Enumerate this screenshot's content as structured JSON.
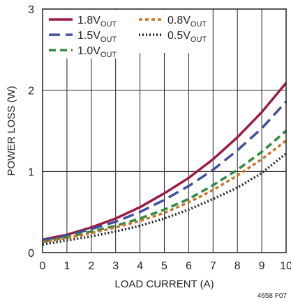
{
  "chart_data": {
    "type": "line",
    "title": "",
    "xlabel": "LOAD CURRENT (A)",
    "ylabel": "POWER LOSS (W)",
    "xlim": [
      0,
      10
    ],
    "ylim": [
      0,
      3
    ],
    "x_ticks": [
      "0",
      "1",
      "2",
      "3",
      "4",
      "5",
      "6",
      "7",
      "8",
      "9",
      "10"
    ],
    "y_ticks": [
      "0",
      "1",
      "2",
      "3"
    ],
    "grid": true,
    "legend_position": "top-left",
    "figure_id": "4658 F07",
    "x": [
      0,
      1,
      2,
      3,
      4,
      5,
      6,
      7,
      8,
      9,
      10
    ],
    "series": [
      {
        "name": "1.8V",
        "name_sub": "OUT",
        "color": "#9b1b45",
        "dash": "solid",
        "values": [
          0.16,
          0.22,
          0.31,
          0.42,
          0.56,
          0.73,
          0.92,
          1.15,
          1.42,
          1.73,
          2.09
        ]
      },
      {
        "name": "1.5V",
        "name_sub": "OUT",
        "color": "#3f4fa0",
        "dash": "longdash",
        "values": [
          0.15,
          0.21,
          0.29,
          0.38,
          0.5,
          0.65,
          0.82,
          1.02,
          1.26,
          1.53,
          1.86
        ]
      },
      {
        "name": "1.0V",
        "name_sub": "OUT",
        "color": "#2e8b3e",
        "dash": "dash",
        "values": [
          0.13,
          0.19,
          0.26,
          0.33,
          0.42,
          0.53,
          0.66,
          0.83,
          1.02,
          1.24,
          1.5
        ]
      },
      {
        "name": "0.8V",
        "name_sub": "OUT",
        "color": "#c8752a",
        "dash": "shortdash",
        "values": [
          0.13,
          0.18,
          0.24,
          0.31,
          0.39,
          0.49,
          0.62,
          0.77,
          0.95,
          1.15,
          1.38
        ]
      },
      {
        "name": "0.5V",
        "name_sub": "OUT",
        "color": "#231f20",
        "dash": "dot",
        "values": [
          0.1,
          0.15,
          0.2,
          0.26,
          0.33,
          0.42,
          0.53,
          0.66,
          0.8,
          0.98,
          1.22
        ]
      }
    ]
  }
}
